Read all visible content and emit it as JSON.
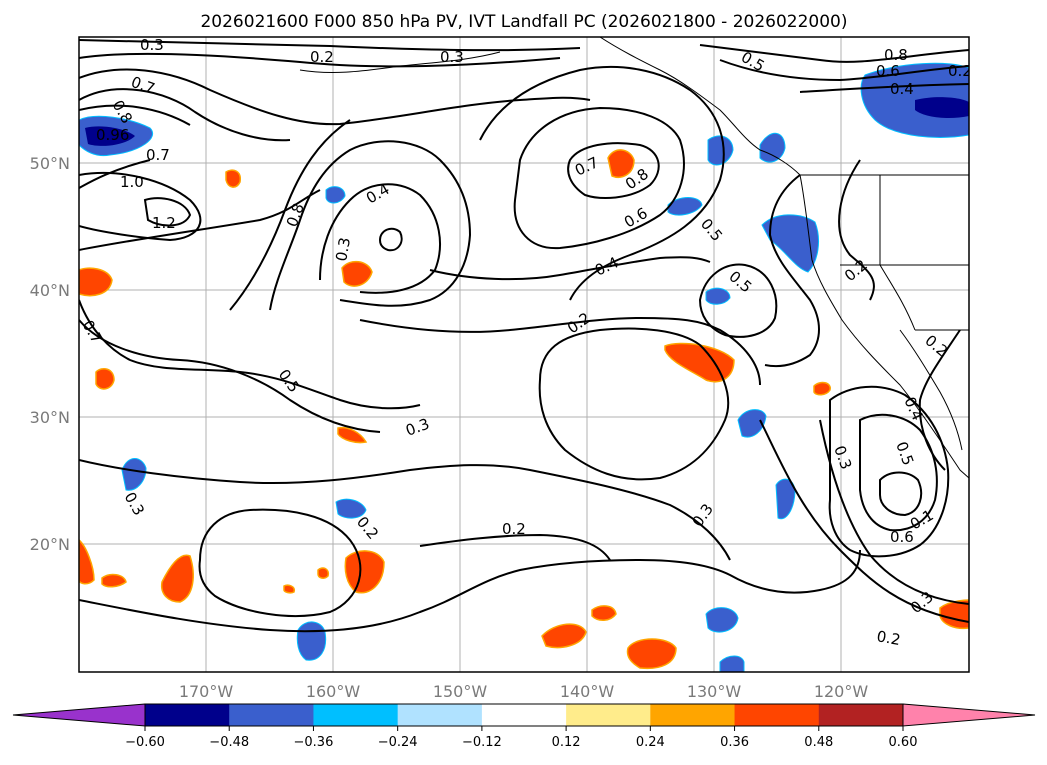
{
  "title": "2026021600 F000 850 hPa PV, IVT Landfall PC (2026021800 - 2026022000)",
  "lat_labels": [
    "50°N",
    "40°N",
    "30°N",
    "20°N"
  ],
  "lon_labels": [
    "170°W",
    "160°W",
    "150°W",
    "140°W",
    "130°W",
    "120°W"
  ],
  "colorbar": {
    "tick_labels": [
      "−0.60",
      "−0.48",
      "−0.36",
      "−0.24",
      "−0.12",
      "0.12",
      "0.24",
      "0.36",
      "0.48",
      "0.60"
    ],
    "colors": {
      "under": "#9932CC",
      "bins": [
        "#9932CC",
        "#00008B",
        "#3A5FCD",
        "#00BFFF",
        "#B0E2FF",
        "#FFFFFF",
        "#FFEC8B",
        "#FFA500",
        "#FF4500",
        "#B22222",
        "#FF82AB"
      ],
      "over": "#FF82AB"
    }
  },
  "contour_labels": [
    "0.3",
    "0.2",
    "0.3",
    "0.7",
    "0.8",
    "0.96",
    "0.7",
    "1.0",
    "1.2",
    "0.8",
    "0.4",
    "0.3",
    "0.7",
    "0.8",
    "0.6",
    "0.5",
    "0.4",
    "0.5",
    "0.2",
    "0.5",
    "0.3",
    "0.3",
    "0.2",
    "0.3",
    "0.2",
    "0.8",
    "0.6",
    "0.4",
    "0.5",
    "0.2",
    "0.2",
    "0.4",
    "0.5",
    "0.3",
    "0.1",
    "0.6",
    "0.3",
    "0.2",
    "0.7",
    "0.2"
  ]
}
